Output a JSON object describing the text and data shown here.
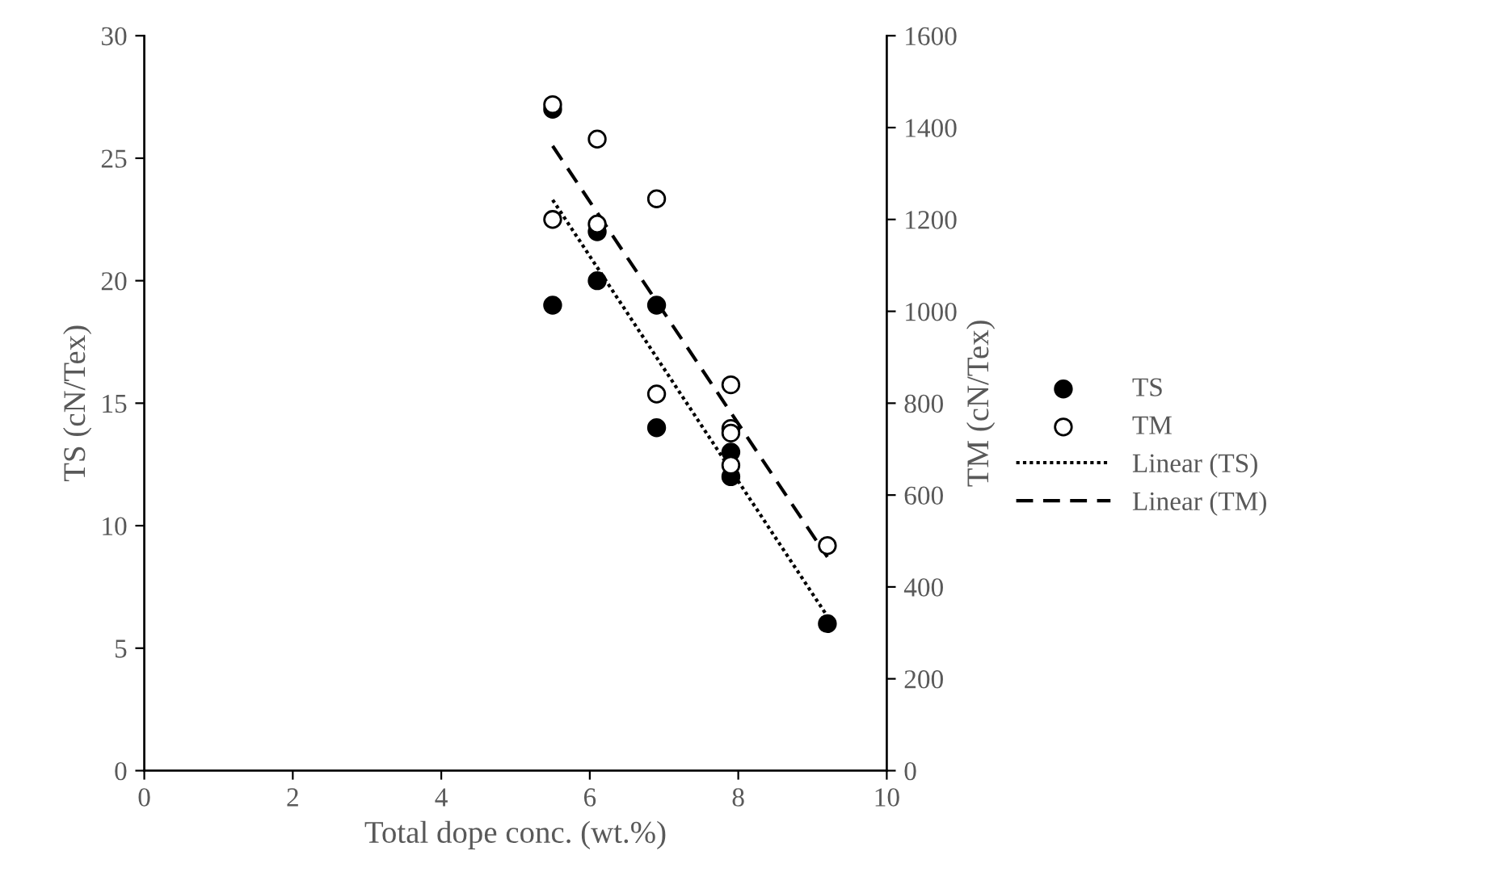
{
  "chart_data": {
    "type": "scatter",
    "xlabel": "Total dope conc. (wt.%)",
    "ylabel": "TS (cN/Tex)",
    "y2label": "TM (cN/Tex)",
    "xlim": [
      0,
      10
    ],
    "xticks": [
      0,
      2,
      4,
      6,
      8,
      10
    ],
    "ylim": [
      0,
      30
    ],
    "yticks": [
      0,
      5,
      10,
      15,
      20,
      25,
      30
    ],
    "y2lim": [
      0,
      1600
    ],
    "y2ticks": [
      0,
      200,
      400,
      600,
      800,
      1000,
      1200,
      1400,
      1600
    ],
    "grid": false,
    "legend": "right",
    "series": [
      {
        "name": "TS",
        "marker": "circle",
        "color": "#000000",
        "x": [
          5.5,
          5.5,
          6.1,
          6.1,
          6.9,
          6.9,
          7.9,
          7.9,
          9.2
        ],
        "values": [
          27,
          19,
          22,
          20,
          19,
          14,
          13,
          12,
          6
        ]
      },
      {
        "name": "TM",
        "marker": "circle",
        "axis": "y2",
        "color": "#000000",
        "x": [
          5.5,
          5.5,
          6.1,
          6.1,
          6.9,
          6.9,
          7.9,
          7.9,
          7.9,
          7.9,
          9.2
        ],
        "values": [
          1450,
          1200,
          1375,
          1190,
          1245,
          820,
          840,
          745,
          735,
          665,
          490
        ]
      },
      {
        "name": "Linear (TS)",
        "type": "line",
        "color": "#000000",
        "line_style": "dotted",
        "x": [
          5.5,
          9.2
        ],
        "values": [
          23.3,
          6.3
        ]
      },
      {
        "name": "Linear (TM)",
        "type": "line",
        "axis": "y2",
        "color": "#000000",
        "line_style": "dashed",
        "x": [
          5.5,
          9.2
        ],
        "values": [
          1360,
          465
        ]
      }
    ]
  }
}
